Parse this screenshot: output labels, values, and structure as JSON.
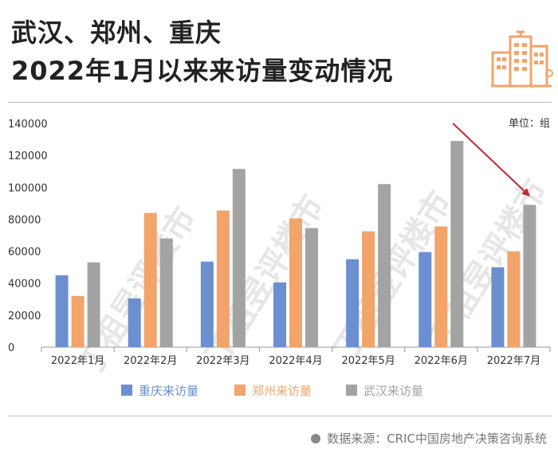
{
  "header": {
    "title_line1": "武汉、郑州、重庆",
    "title_line2": "2022年1月以来来访量变动情况"
  },
  "footer": {
    "source": "数据来源：CRIC中国房地产决策咨询系统"
  },
  "watermark": "丁祖昱评楼市",
  "colors": {
    "chongqing": "#6b8fcf",
    "zhengzhou": "#f2a46b",
    "wuhan": "#a3a3a3",
    "arrow": "#c0262d",
    "logo": "#f2a46b"
  },
  "chart_data": {
    "type": "bar",
    "unit_label": "单位：组",
    "categories": [
      "2022年1月",
      "2022年2月",
      "2022年3月",
      "2022年4月",
      "2022年5月",
      "2022年6月",
      "2022年7月"
    ],
    "series": [
      {
        "name": "重庆来访量",
        "values": [
          45000,
          30500,
          53500,
          40500,
          55000,
          59500,
          50000
        ]
      },
      {
        "name": "郑州来访量",
        "values": [
          32000,
          84000,
          85500,
          80500,
          72500,
          75500,
          60000
        ]
      },
      {
        "name": "武汉来访量",
        "values": [
          53000,
          68000,
          111500,
          74500,
          102000,
          129000,
          89000
        ]
      }
    ],
    "ylim": [
      0,
      140000
    ],
    "yticks": [
      "0",
      "20000",
      "40000",
      "60000",
      "80000",
      "100000",
      "120000",
      "140000"
    ],
    "grid": false,
    "legend": "bottom",
    "annotation": "red arrow from 2022年6月 to 2022年7月 Wuhan bars"
  }
}
